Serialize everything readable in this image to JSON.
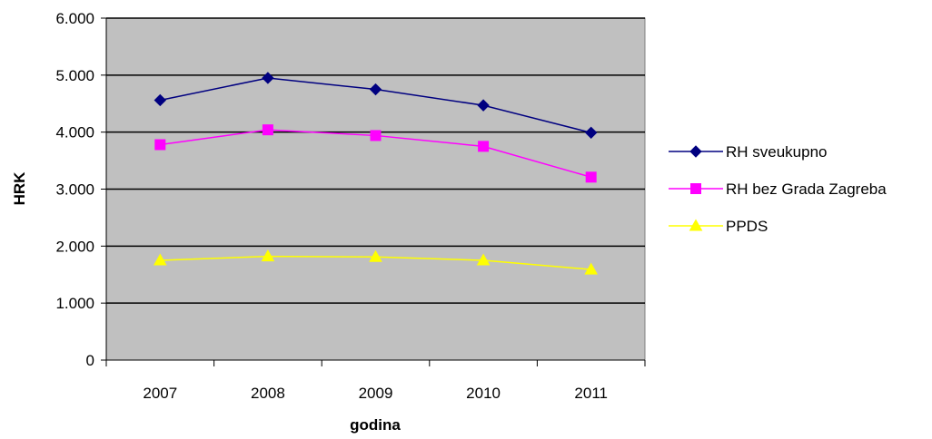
{
  "chart_data": {
    "type": "line",
    "categories": [
      "2007",
      "2008",
      "2009",
      "2010",
      "2011"
    ],
    "series": [
      {
        "name": "RH sveukupno",
        "values": [
          4560,
          4950,
          4750,
          4470,
          3990
        ],
        "color": "#000080",
        "marker": "diamond"
      },
      {
        "name": "RH bez Grada Zagreba",
        "values": [
          3780,
          4040,
          3940,
          3750,
          3210
        ],
        "color": "#ff00ff",
        "marker": "square"
      },
      {
        "name": "PPDS",
        "values": [
          1750,
          1820,
          1810,
          1750,
          1590
        ],
        "color": "#ffff00",
        "marker": "triangle"
      }
    ],
    "xlabel": "godina",
    "ylabel": "HRK",
    "ylim": [
      0,
      6000
    ],
    "yticks": [
      "0",
      "1.000",
      "2.000",
      "3.000",
      "4.000",
      "5.000",
      "6.000"
    ],
    "plot_background": "#c0c0c0",
    "grid": true,
    "legend_position": "right"
  }
}
